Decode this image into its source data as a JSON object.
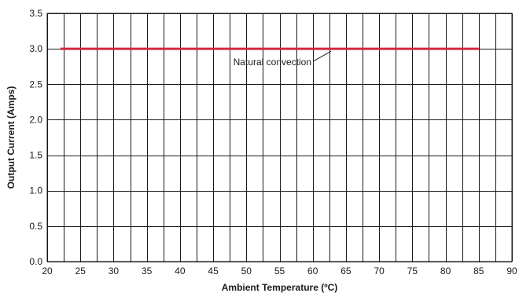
{
  "chart_data": {
    "type": "line",
    "xlabel": "Ambient Temperature (ºC)",
    "ylabel": "Output Current (Amps)",
    "xlim": [
      20,
      90
    ],
    "ylim": [
      0,
      3.5
    ],
    "x_ticks": [
      "20",
      "25",
      "30",
      "35",
      "40",
      "45",
      "50",
      "55",
      "60",
      "65",
      "70",
      "75",
      "80",
      "85",
      "90"
    ],
    "y_ticks": [
      "0.0",
      "0.5",
      "1.0",
      "1.5",
      "2.0",
      "2.5",
      "3.0",
      "3.5"
    ],
    "grid": true,
    "series": [
      {
        "name": "Natural convection",
        "color": "#d6283f",
        "x": [
          22,
          85
        ],
        "y": [
          3.0,
          3.0
        ]
      }
    ],
    "annotations": [
      {
        "text": "Natural convection",
        "x": 63,
        "y": 3.0
      }
    ]
  }
}
